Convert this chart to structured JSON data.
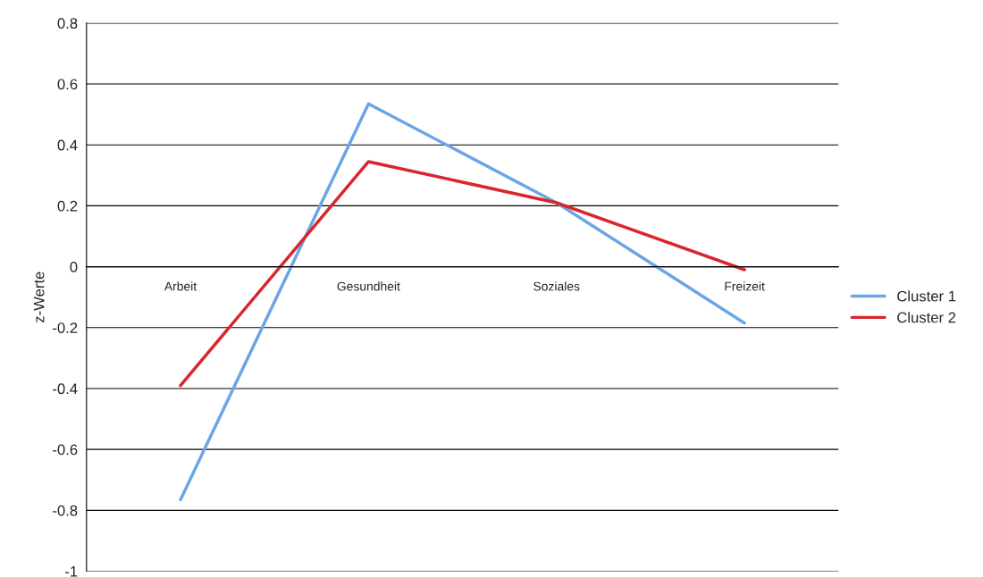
{
  "chart_data": {
    "type": "line",
    "ylabel": "z-Werte",
    "categories": [
      "Arbeit",
      "Gesundheit",
      "Soziales",
      "Freizeit"
    ],
    "series": [
      {
        "name": "Cluster 1",
        "color": "#6aa6e6",
        "values": [
          -0.765,
          0.535,
          0.21,
          -0.185
        ]
      },
      {
        "name": "Cluster 2",
        "color": "#d9262b",
        "values": [
          -0.39,
          0.345,
          0.21,
          -0.01
        ]
      }
    ],
    "ylim": [
      -1,
      0.8
    ],
    "yticks": [
      -1,
      -0.8,
      -0.6,
      -0.4,
      -0.2,
      0,
      0.2,
      0.4,
      0.6,
      0.8
    ],
    "grid": "y",
    "legend": "right",
    "marker": "none",
    "line_style": "solid"
  }
}
